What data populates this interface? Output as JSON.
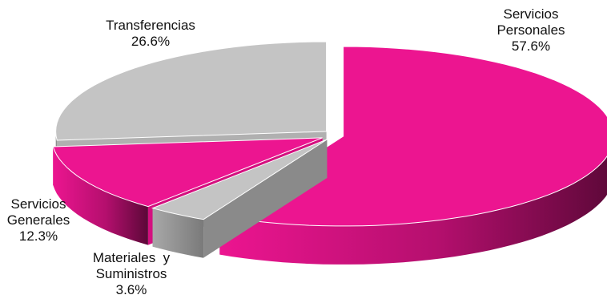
{
  "chart_data": {
    "type": "pie",
    "style": "3d-exploded",
    "title": "",
    "slices": [
      {
        "label_lines": [
          "Servicios",
          "Personales"
        ],
        "value": 57.6,
        "value_text": "57.6%",
        "color": "#EC1590",
        "side_color": "#6A0A40"
      },
      {
        "label_lines": [
          "Materiales  y",
          "Suministros"
        ],
        "value": 3.6,
        "value_text": "3.6%",
        "color": "#C4C4C4",
        "side_color": "#8A8A8A"
      },
      {
        "label_lines": [
          "Servicios",
          "Generales"
        ],
        "value": 12.3,
        "value_text": "12.3%",
        "color": "#EC1590",
        "side_color": "#D4107F"
      },
      {
        "label_lines": [
          "Transferencias"
        ],
        "value": 26.6,
        "value_text": "26.6%",
        "color": "#C4C4C4",
        "side_color": "#B0B0B0"
      }
    ],
    "legend": "none",
    "labels": "outside"
  }
}
